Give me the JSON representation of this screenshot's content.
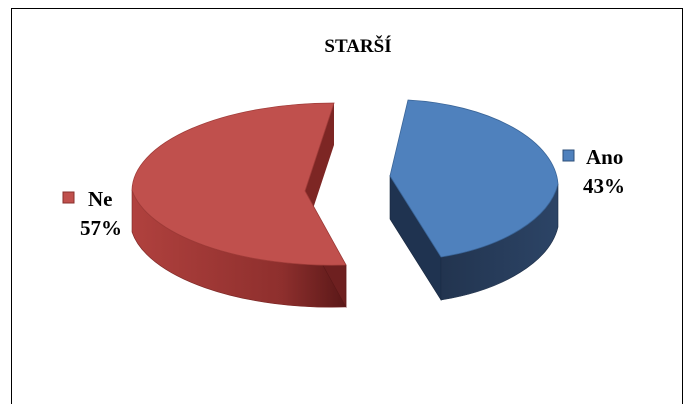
{
  "chart_data": {
    "type": "pie",
    "title": "STARŠÍ",
    "style": "3d-exploded",
    "slices": [
      {
        "category": "Ano",
        "value": 43,
        "label": "43%",
        "color": "#4f81bd"
      },
      {
        "category": "Ne",
        "value": 57,
        "label": "57%",
        "color": "#c0504d"
      }
    ]
  }
}
